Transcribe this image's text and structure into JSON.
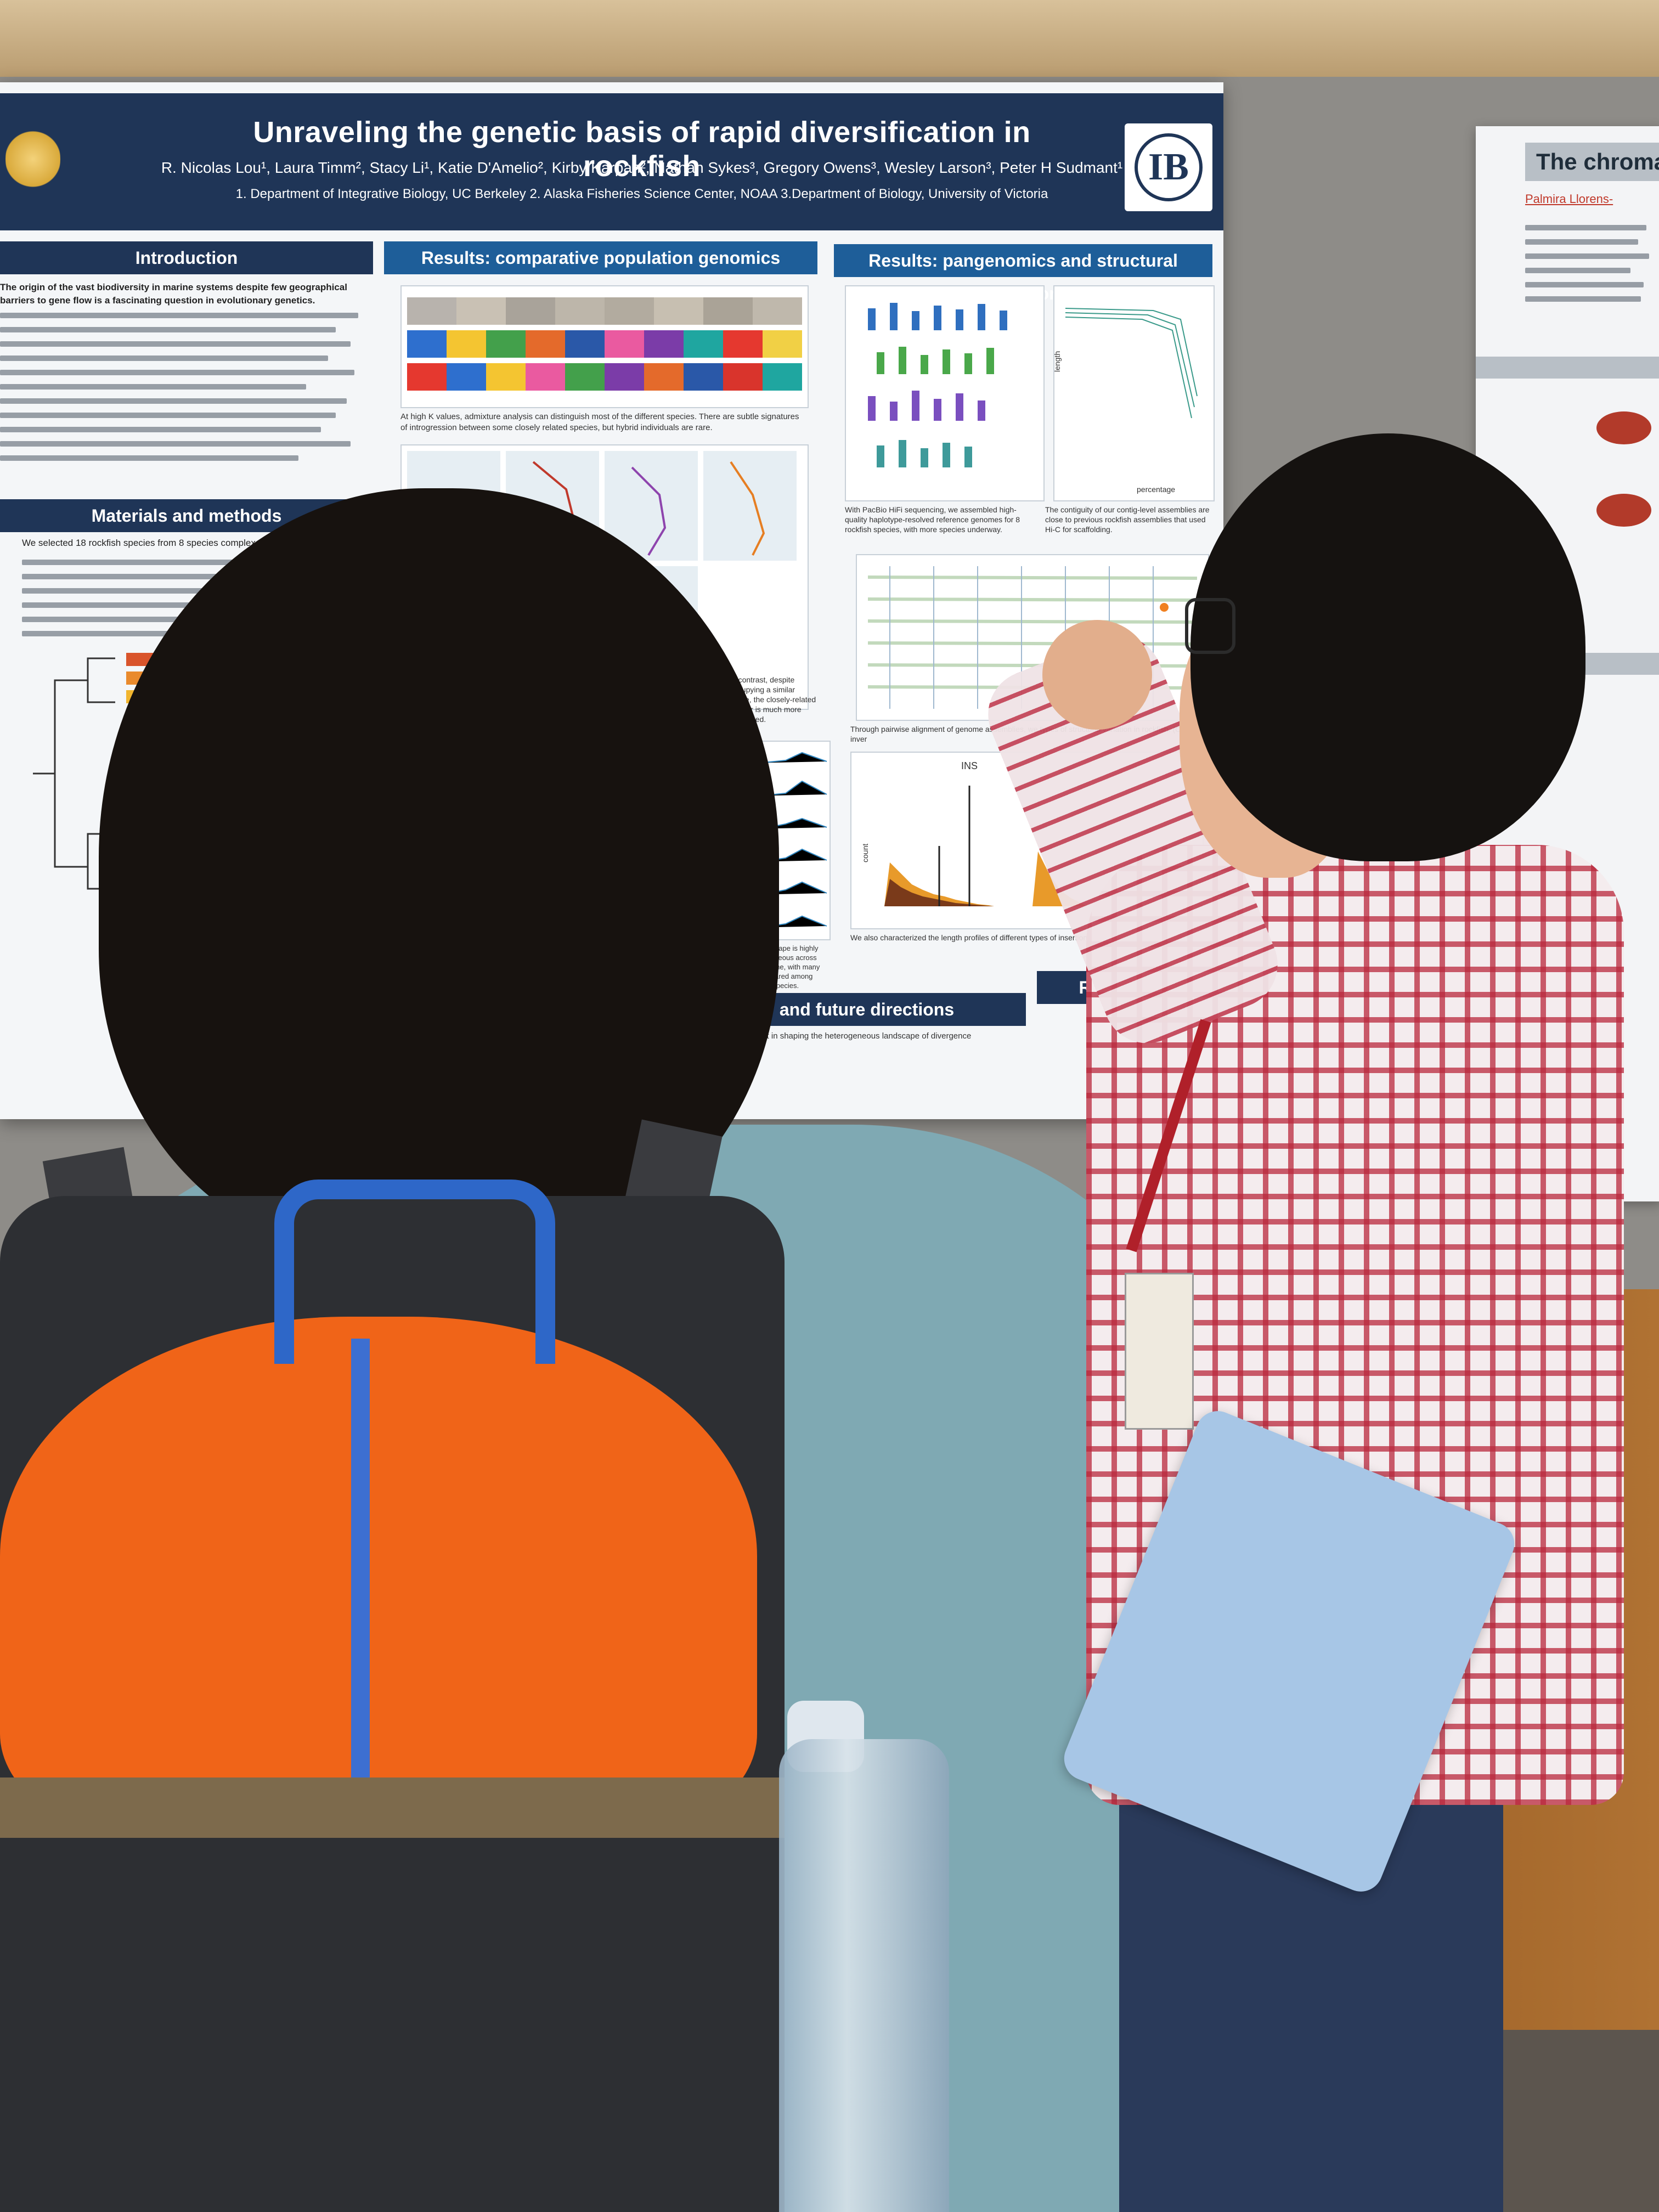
{
  "poster": {
    "title": "Unraveling the genetic basis of rapid diversification in rockfish",
    "authors": "R. Nicolas Lou¹, Laura Timm², Stacy Li¹, Katie D'Amelio², Kirby Karpan², Nathan Sykes³, Gregory Owens³, Wesley Larson³, Peter H Sudmant¹",
    "affiliations": "1. Department of Integrative Biology, UC Berkeley     2. Alaska Fisheries Science Center, NOAA     3.Department of Biology, University of Victoria",
    "logo_text": "IB",
    "sections": {
      "introduction": "Introduction",
      "materials": "Materials and methods",
      "comparative": "Results: comparative population genomics",
      "pangenomics": "Results: pangenomics and structural variation",
      "future": "and future directions",
      "references": "Referenc"
    },
    "intro_text": "The origin of the vast biodiversity in marine systems despite few geographical barriers to gene flow is a fascinating question in evolutionary genetics.",
    "materials_text": "We selected 18 rockfish species from 8 species complexes",
    "chart_labels": {
      "ins": "INS",
      "count": "count",
      "length": "length",
      "percentage": "percentage"
    },
    "caption_admixture": "At high K values, admixture analysis can distinguish most of the different species. There are subtle signatures of introgression between some closely related species, but hybrid individuals are rare.",
    "caption_hifi": "With PacBio HiFi sequencing, we assembled high-quality haplotype-resolved reference genomes for 8 rockfish species, with more species underway.",
    "caption_contig": "The contiguity of our contig-level assemblies are close to previous rockfish assemblies that used Hi-C for scaffolding.",
    "caption_copper": "In contrast, despite occupying a similar range, the closely-related copper is much more structured.",
    "caption_fst": "Fst landscape is highly heterogeneous across the genome, with many peaks shared among multiple species.",
    "caption_pairwise": "Through pairwise alignment of genome assemblies, we types of structural variation in rockfish. (Orange: inver",
    "caption_lengths": "We also characterized the length profiles of different types of insertions and",
    "future_text": "selection vs. drift in shaping the heterogeneous landscape of divergence"
  },
  "neighbor_poster": {
    "title": "The chroma",
    "author": "Palmira Llorens-"
  },
  "colors": {
    "poster_navy": "#1f3557",
    "section_blue": "#1e5e99",
    "backpack_orange": "#f06418",
    "shirt_red": "#b9283c"
  }
}
